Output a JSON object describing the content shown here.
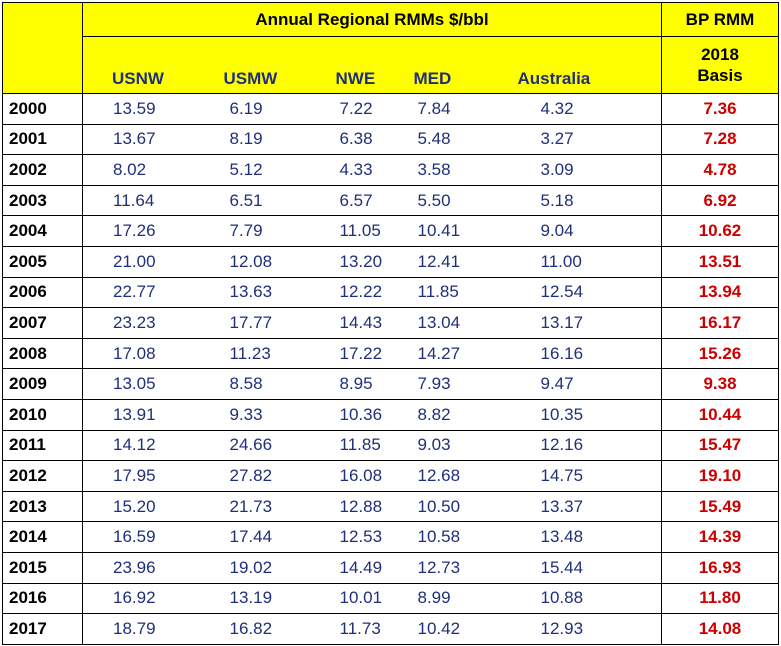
{
  "header": {
    "group_title": "Annual Regional RMMs $/bbl",
    "bp_title": "BP RMM",
    "bp_sub_line1": "2018",
    "bp_sub_line2": "Basis",
    "columns": [
      "USNW",
      "USMW",
      "NWE",
      "MED",
      "Australia"
    ]
  },
  "colors": {
    "header_bg": "#ffff00",
    "value_text": "#1f2f7a",
    "bp_text": "#cc0000"
  },
  "rows": [
    {
      "year": "2000",
      "usnw": "13.59",
      "usmw": "6.19",
      "nwe": "7.22",
      "med": "7.84",
      "aus": "4.32",
      "bp": "7.36"
    },
    {
      "year": "2001",
      "usnw": "13.67",
      "usmw": "8.19",
      "nwe": "6.38",
      "med": "5.48",
      "aus": "3.27",
      "bp": "7.28"
    },
    {
      "year": "2002",
      "usnw": "8.02",
      "usmw": "5.12",
      "nwe": "4.33",
      "med": "3.58",
      "aus": "3.09",
      "bp": "4.78"
    },
    {
      "year": "2003",
      "usnw": "11.64",
      "usmw": "6.51",
      "nwe": "6.57",
      "med": "5.50",
      "aus": "5.18",
      "bp": "6.92"
    },
    {
      "year": "2004",
      "usnw": "17.26",
      "usmw": "7.79",
      "nwe": "11.05",
      "med": "10.41",
      "aus": "9.04",
      "bp": "10.62"
    },
    {
      "year": "2005",
      "usnw": "21.00",
      "usmw": "12.08",
      "nwe": "13.20",
      "med": "12.41",
      "aus": "11.00",
      "bp": "13.51"
    },
    {
      "year": "2006",
      "usnw": "22.77",
      "usmw": "13.63",
      "nwe": "12.22",
      "med": "11.85",
      "aus": "12.54",
      "bp": "13.94"
    },
    {
      "year": "2007",
      "usnw": "23.23",
      "usmw": "17.77",
      "nwe": "14.43",
      "med": "13.04",
      "aus": "13.17",
      "bp": "16.17"
    },
    {
      "year": "2008",
      "usnw": "17.08",
      "usmw": "11.23",
      "nwe": "17.22",
      "med": "14.27",
      "aus": "16.16",
      "bp": "15.26"
    },
    {
      "year": "2009",
      "usnw": "13.05",
      "usmw": "8.58",
      "nwe": "8.95",
      "med": "7.93",
      "aus": "9.47",
      "bp": "9.38"
    },
    {
      "year": "2010",
      "usnw": "13.91",
      "usmw": "9.33",
      "nwe": "10.36",
      "med": "8.82",
      "aus": "10.35",
      "bp": "10.44"
    },
    {
      "year": "2011",
      "usnw": "14.12",
      "usmw": "24.66",
      "nwe": "11.85",
      "med": "9.03",
      "aus": "12.16",
      "bp": "15.47"
    },
    {
      "year": "2012",
      "usnw": "17.95",
      "usmw": "27.82",
      "nwe": "16.08",
      "med": "12.68",
      "aus": "14.75",
      "bp": "19.10"
    },
    {
      "year": "2013",
      "usnw": "15.20",
      "usmw": "21.73",
      "nwe": "12.88",
      "med": "10.50",
      "aus": "13.37",
      "bp": "15.49"
    },
    {
      "year": "2014",
      "usnw": "16.59",
      "usmw": "17.44",
      "nwe": "12.53",
      "med": "10.58",
      "aus": "13.48",
      "bp": "14.39"
    },
    {
      "year": "2015",
      "usnw": "23.96",
      "usmw": "19.02",
      "nwe": "14.49",
      "med": "12.73",
      "aus": "15.44",
      "bp": "16.93"
    },
    {
      "year": "2016",
      "usnw": "16.92",
      "usmw": "13.19",
      "nwe": "10.01",
      "med": "8.99",
      "aus": "10.88",
      "bp": "11.80"
    },
    {
      "year": "2017",
      "usnw": "18.79",
      "usmw": "16.82",
      "nwe": "11.73",
      "med": "10.42",
      "aus": "12.93",
      "bp": "14.08"
    }
  ]
}
